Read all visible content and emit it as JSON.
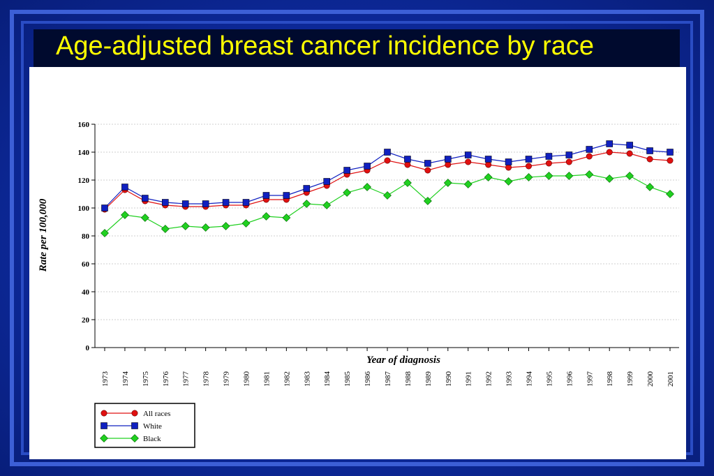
{
  "slide": {
    "title": "Age-adjusted breast cancer incidence by race"
  },
  "colors": {
    "background": "#0d2a9e",
    "title": "#ffff00",
    "all_races": "#e01010",
    "white": "#1020c0",
    "black": "#20d020"
  },
  "chart_data": {
    "type": "line",
    "title": "",
    "xlabel": "Year of diagnosis",
    "ylabel": "Rate per 100,000",
    "ylim": [
      0,
      160
    ],
    "yticks": [
      "0",
      "20",
      "40",
      "60",
      "80",
      "100",
      "120",
      "140",
      "160"
    ],
    "grid": true,
    "legend_position": "bottom-left",
    "x": [
      "1973",
      "1974",
      "1975",
      "1976",
      "1977",
      "1978",
      "1979",
      "1980",
      "1981",
      "1982",
      "1983",
      "1984",
      "1985",
      "1986",
      "1987",
      "1988",
      "1989",
      "1990",
      "1991",
      "1992",
      "1993",
      "1994",
      "1995",
      "1996",
      "1997",
      "1998",
      "1999",
      "2000",
      "2001"
    ],
    "series": [
      {
        "name": "All races",
        "marker": "circle",
        "color": "#e01010",
        "values": [
          99,
          113,
          105,
          102,
          101,
          101,
          102,
          102,
          106,
          106,
          111,
          116,
          124,
          127,
          134,
          131,
          127,
          131,
          133,
          131,
          129,
          130,
          132,
          133,
          137,
          140,
          139,
          135,
          134
        ]
      },
      {
        "name": "White",
        "marker": "square",
        "color": "#1020c0",
        "values": [
          100,
          115,
          107,
          104,
          103,
          103,
          104,
          104,
          109,
          109,
          114,
          119,
          127,
          130,
          140,
          135,
          132,
          135,
          138,
          135,
          133,
          135,
          137,
          138,
          142,
          146,
          145,
          141,
          140
        ]
      },
      {
        "name": "Black",
        "marker": "diamond",
        "color": "#20d020",
        "values": [
          82,
          95,
          93,
          85,
          87,
          86,
          87,
          89,
          94,
          93,
          103,
          102,
          111,
          115,
          109,
          118,
          105,
          118,
          117,
          122,
          119,
          122,
          123,
          123,
          124,
          121,
          123,
          115,
          110
        ]
      }
    ]
  }
}
